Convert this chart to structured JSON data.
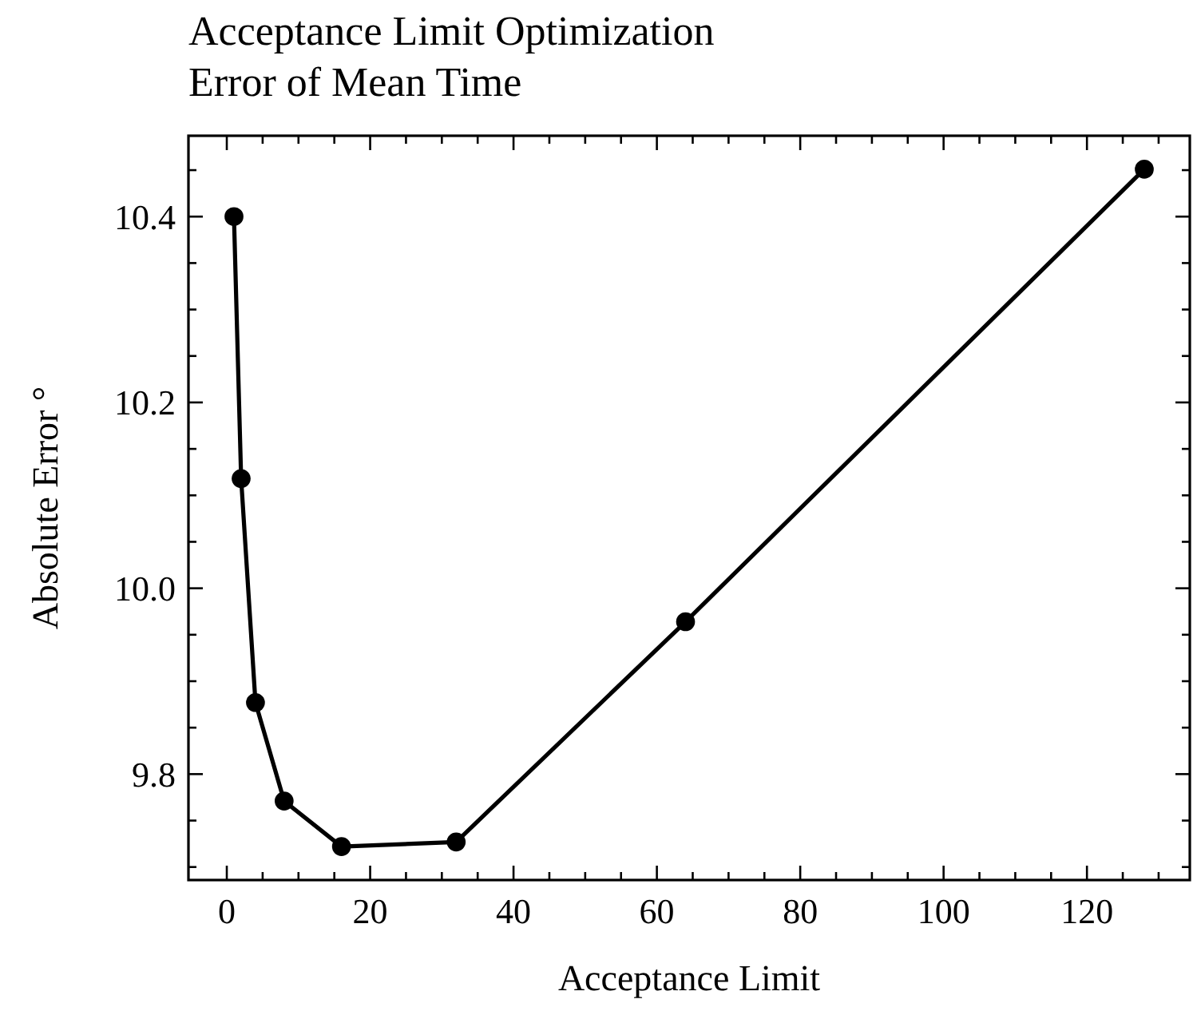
{
  "chart_data": {
    "type": "line",
    "title": "Acceptance Limit Optimization",
    "subtitle": "Error of Mean Time",
    "xlabel": "Acceptance Limit",
    "ylabel": "Absolute Error °",
    "x": [
      1,
      2,
      4,
      8,
      16,
      32,
      64,
      128
    ],
    "series": [
      {
        "color": "#000000",
        "values": [
          10.4,
          10.118,
          9.877,
          9.771,
          9.722,
          9.727,
          9.964,
          10.451
        ]
      }
    ],
    "xlim": [
      -5.35,
      134.35
    ],
    "ylim": [
      9.686,
      10.487
    ],
    "xticks": [
      0,
      {
        "value": 5,
        "label": null
      },
      {
        "value": 10,
        "label": null
      },
      {
        "value": 15,
        "label": null
      },
      20,
      {
        "value": 25,
        "label": null
      },
      {
        "value": 30,
        "label": null
      },
      {
        "value": 35,
        "label": null
      },
      40,
      {
        "value": 45,
        "label": null
      },
      {
        "value": 50,
        "label": null
      },
      {
        "value": 55,
        "label": null
      },
      60,
      {
        "value": 65,
        "label": null
      },
      {
        "value": 70,
        "label": null
      },
      {
        "value": 75,
        "label": null
      },
      80,
      {
        "value": 85,
        "label": null
      },
      {
        "value": 90,
        "label": null
      },
      {
        "value": 95,
        "label": null
      },
      100,
      {
        "value": 105,
        "label": null
      },
      {
        "value": 110,
        "label": null
      },
      {
        "value": 115,
        "label": null
      },
      120,
      {
        "value": 125,
        "label": null
      },
      {
        "value": 130,
        "label": null
      }
    ],
    "yticks": [
      {
        "value": 9.7,
        "label": null
      },
      {
        "value": 9.75,
        "label": null
      },
      {
        "value": 9.8,
        "label": "9.8"
      },
      {
        "value": 9.85,
        "label": null
      },
      {
        "value": 9.9,
        "label": null
      },
      {
        "value": 9.95,
        "label": null
      },
      {
        "value": 10.0,
        "label": "10.0"
      },
      {
        "value": 10.05,
        "label": null
      },
      {
        "value": 10.1,
        "label": null
      },
      {
        "value": 10.15,
        "label": null
      },
      {
        "value": 10.2,
        "label": "10.2"
      },
      {
        "value": 10.25,
        "label": null
      },
      {
        "value": 10.3,
        "label": null
      },
      {
        "value": 10.35,
        "label": null
      },
      {
        "value": 10.4,
        "label": "10.4"
      },
      {
        "value": 10.45,
        "label": null
      }
    ],
    "grid": false,
    "marker": "circle",
    "line_style": "solid"
  }
}
